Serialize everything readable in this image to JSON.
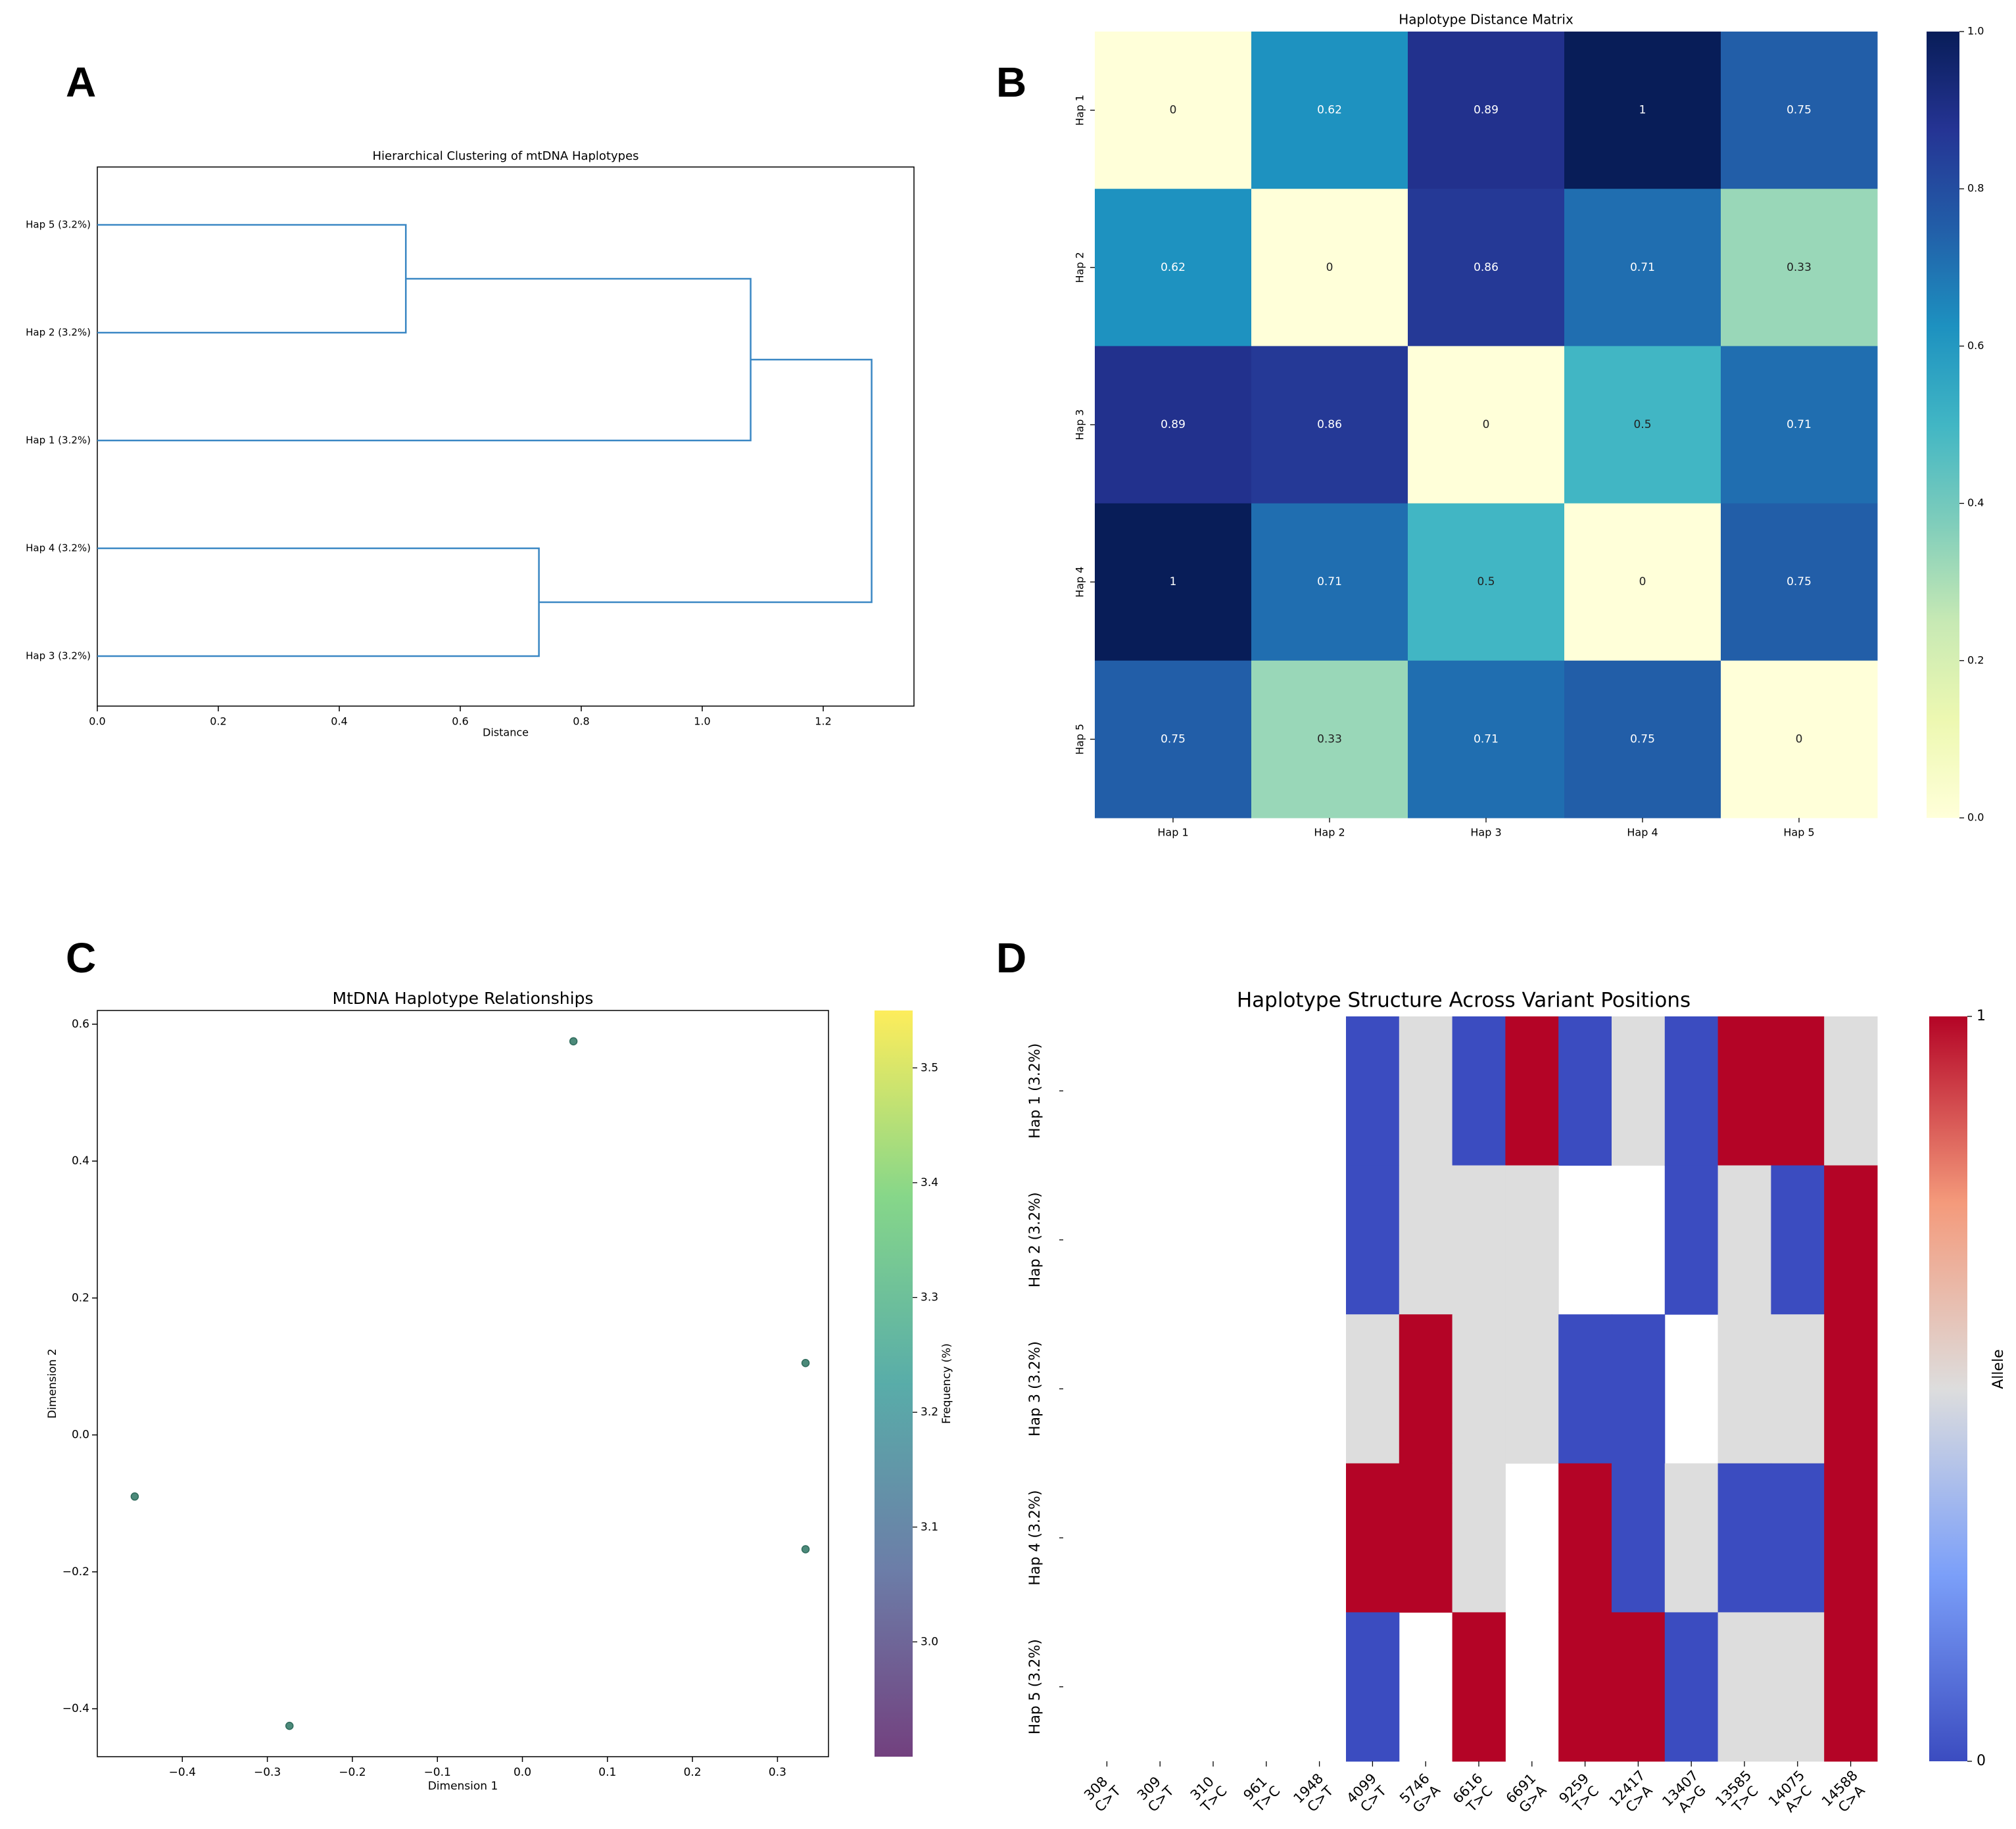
{
  "panel_labels": {
    "a": "A",
    "b": "B",
    "c": "C",
    "d": "D"
  },
  "colors": {
    "dendro_line": "#3a87c4",
    "scatter_point": "#4c8a7a"
  },
  "chart_data": [
    {
      "panel": "A",
      "type": "dendrogram",
      "title": "Hierarchical Clustering of mtDNA Haplotypes",
      "xlabel": "Distance",
      "ylabel": "",
      "xlim": [
        0,
        1.35
      ],
      "xticks": [
        0.0,
        0.2,
        0.4,
        0.6,
        0.8,
        1.0,
        1.2
      ],
      "xtick_labels": [
        "0.0",
        "0.2",
        "0.4",
        "0.6",
        "0.8",
        "1.0",
        "1.2"
      ],
      "leaves": [
        "Hap 5 (3.2%)",
        "Hap 2 (3.2%)",
        "Hap 1 (3.2%)",
        "Hap 4 (3.2%)",
        "Hap 3 (3.2%)"
      ],
      "merges": [
        {
          "a": 0,
          "b": 1,
          "height": 0.51
        },
        {
          "a": "m0",
          "b": 2,
          "height": 1.08
        },
        {
          "a": 3,
          "b": 4,
          "height": 0.73
        },
        {
          "a": "m1",
          "b": "m2",
          "height": 1.28
        }
      ]
    },
    {
      "panel": "B",
      "type": "heatmap",
      "title": "Haplotype Distance Matrix",
      "rows": [
        "Hap 1",
        "Hap 2",
        "Hap 3",
        "Hap 4",
        "Hap 5"
      ],
      "columns": [
        "Hap 1",
        "Hap 2",
        "Hap 3",
        "Hap 4",
        "Hap 5"
      ],
      "values": [
        [
          0,
          0.62,
          0.89,
          1,
          0.75
        ],
        [
          0.62,
          0,
          0.86,
          0.71,
          0.33
        ],
        [
          0.89,
          0.86,
          0,
          0.5,
          0.71
        ],
        [
          1,
          0.71,
          0.5,
          0,
          0.75
        ],
        [
          0.75,
          0.33,
          0.71,
          0.75,
          0
        ]
      ],
      "cell_labels": [
        [
          "0",
          "0.62",
          "0.89",
          "1",
          "0.75"
        ],
        [
          "0.62",
          "0",
          "0.86",
          "0.71",
          "0.33"
        ],
        [
          "0.89",
          "0.86",
          "0",
          "0.5",
          "0.71"
        ],
        [
          "1",
          "0.71",
          "0.5",
          "0",
          "0.75"
        ],
        [
          "0.75",
          "0.33",
          "0.71",
          "0.75",
          "0"
        ]
      ],
      "colormap": "YlGnBu",
      "colorbar_range": [
        0,
        1
      ],
      "colorbar_ticks": [
        0.0,
        0.2,
        0.4,
        0.6,
        0.8,
        1.0
      ],
      "colorbar_tick_labels": [
        "0.0",
        "0.2",
        "0.4",
        "0.6",
        "0.8",
        "1.0"
      ]
    },
    {
      "panel": "C",
      "type": "scatter",
      "title": "MtDNA Haplotype Relationships",
      "xlabel": "Dimension 1",
      "ylabel": "Dimension 2",
      "xlim": [
        -0.5,
        0.36
      ],
      "ylim": [
        -0.47,
        0.62
      ],
      "xticks": [
        -0.4,
        -0.3,
        -0.2,
        -0.1,
        0.0,
        0.1,
        0.2,
        0.3
      ],
      "xtick_labels": [
        "−0.4",
        "−0.3",
        "−0.2",
        "−0.1",
        "0.0",
        "0.1",
        "0.2",
        "0.3"
      ],
      "yticks": [
        -0.4,
        -0.2,
        0.0,
        0.2,
        0.4,
        0.6
      ],
      "ytick_labels": [
        "−0.4",
        "−0.2",
        "0.0",
        "0.2",
        "0.4",
        "0.6"
      ],
      "points": [
        {
          "x": 0.06,
          "y": 0.575
        },
        {
          "x": 0.333,
          "y": 0.105
        },
        {
          "x": 0.333,
          "y": -0.167
        },
        {
          "x": -0.456,
          "y": -0.09
        },
        {
          "x": -0.274,
          "y": -0.425
        }
      ],
      "colorbar_label": "Frequency (%)",
      "colorbar_range": [
        2.9,
        3.55
      ],
      "colorbar_ticks": [
        3.0,
        3.1,
        3.2,
        3.3,
        3.4,
        3.5
      ],
      "colorbar_tick_labels": [
        "3.0",
        "3.1",
        "3.2",
        "3.3",
        "3.4",
        "3.5"
      ]
    },
    {
      "panel": "D",
      "type": "heatmap",
      "title": "Haplotype Structure Across Variant Positions",
      "rows": [
        "Hap 1 (3.2%)",
        "Hap 2 (3.2%)",
        "Hap 3 (3.2%)",
        "Hap 4 (3.2%)",
        "Hap 5 (3.2%)"
      ],
      "columns": [
        {
          "pos": "308",
          "change": "C>T"
        },
        {
          "pos": "309",
          "change": "C>T"
        },
        {
          "pos": "310",
          "change": "T>C"
        },
        {
          "pos": "961",
          "change": "T>C"
        },
        {
          "pos": "1948",
          "change": "C>T"
        },
        {
          "pos": "4099",
          "change": "C>T"
        },
        {
          "pos": "5746",
          "change": "G>A"
        },
        {
          "pos": "6616",
          "change": "T>C"
        },
        {
          "pos": "6691",
          "change": "G>A"
        },
        {
          "pos": "9259",
          "change": "T>C"
        },
        {
          "pos": "12417",
          "change": "C>A"
        },
        {
          "pos": "13407",
          "change": "A>G"
        },
        {
          "pos": "13585",
          "change": "T>C"
        },
        {
          "pos": "14075",
          "change": "A>C"
        },
        {
          "pos": "14588",
          "change": "C>A"
        }
      ],
      "values": [
        [
          null,
          null,
          null,
          null,
          null,
          0,
          0.5,
          0,
          1,
          0,
          0.5,
          0,
          1,
          1,
          0.5
        ],
        [
          null,
          null,
          null,
          null,
          null,
          0,
          0.5,
          0.5,
          0.5,
          null,
          null,
          0,
          0.5,
          0,
          1
        ],
        [
          null,
          null,
          null,
          null,
          null,
          0.5,
          1,
          0.5,
          0.5,
          0,
          0,
          null,
          0.5,
          0.5,
          1
        ],
        [
          null,
          null,
          null,
          null,
          null,
          1,
          1,
          0.5,
          null,
          1,
          0,
          0.5,
          0,
          0,
          1
        ],
        [
          null,
          null,
          null,
          null,
          null,
          0,
          null,
          1,
          null,
          1,
          1,
          0,
          0.5,
          0.5,
          1
        ]
      ],
      "colormap": "coolwarm",
      "colorbar_label": "Allele",
      "colorbar_range": [
        0,
        1
      ],
      "colorbar_ticks": [
        0,
        1
      ],
      "colorbar_tick_labels": [
        "0",
        "1"
      ]
    }
  ]
}
